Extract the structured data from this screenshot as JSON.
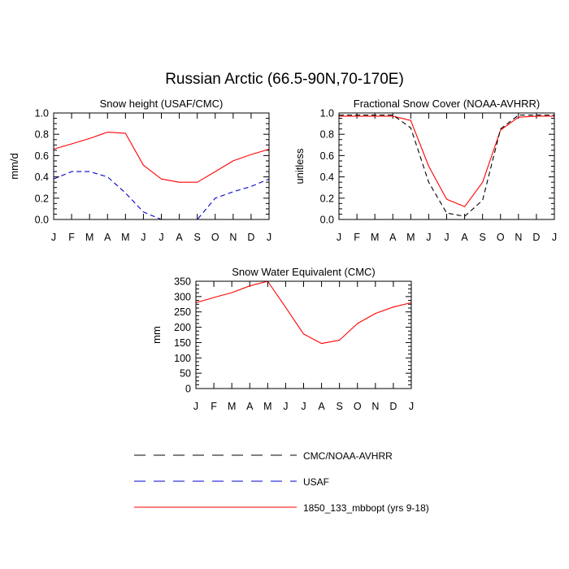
{
  "figure": {
    "title": "Russian Arctic (66.5-90N,70-170E)"
  },
  "colors": {
    "model": "#ff0000",
    "usaf": "#0000cc",
    "cmc": "#000000",
    "axis": "#000000",
    "legend_gray": "#888888"
  },
  "legend": [
    {
      "label": "CMC/NOAA-AVHRR",
      "style": "dashed",
      "color": "#000000"
    },
    {
      "label": "USAF",
      "style": "dashed",
      "color": "#0000cc"
    },
    {
      "label": "1850_133_mbbopt (yrs 9-18)",
      "style": "solid",
      "color": "#ff0000"
    }
  ],
  "chart_data": [
    {
      "type": "line",
      "title": "Snow height (USAF/CMC)",
      "ylabel": "mm/d",
      "xlabel": "",
      "categories": [
        "J",
        "F",
        "M",
        "A",
        "M",
        "J",
        "J",
        "A",
        "S",
        "O",
        "N",
        "D",
        "J"
      ],
      "ylim": [
        0,
        1.0
      ],
      "yticks": [
        "0.0",
        "0.2",
        "0.4",
        "0.6",
        "0.8",
        "1.0"
      ],
      "series": [
        {
          "values": [
            0.66,
            0.71,
            0.76,
            0.82,
            0.81,
            0.51,
            0.38,
            0.35,
            0.35,
            0.45,
            0.55,
            0.61,
            0.66
          ],
          "color": "#ff0000",
          "dash": false
        },
        {
          "values": [
            0.38,
            0.45,
            0.45,
            0.4,
            0.25,
            0.07,
            0.0,
            0.0,
            0.0,
            0.2,
            0.26,
            0.31,
            0.38
          ],
          "color": "#0000cc",
          "dash": true
        },
        {
          "values": [
            0.0,
            0.0,
            0.0,
            0.0,
            0.0,
            0.0,
            0.0,
            0.0,
            0.0,
            0.0,
            0.0,
            0.0,
            0.0
          ],
          "color": "#000000",
          "dash": true
        }
      ]
    },
    {
      "type": "line",
      "title": "Fractional Snow Cover (NOAA-AVHRR)",
      "ylabel": "unitless",
      "xlabel": "",
      "categories": [
        "J",
        "F",
        "M",
        "A",
        "M",
        "J",
        "J",
        "A",
        "S",
        "O",
        "N",
        "D",
        "J"
      ],
      "ylim": [
        0,
        1.0
      ],
      "yticks": [
        "0.0",
        "0.2",
        "0.4",
        "0.6",
        "0.8",
        "1.0"
      ],
      "series": [
        {
          "values": [
            0.97,
            0.97,
            0.97,
            0.97,
            0.93,
            0.5,
            0.19,
            0.12,
            0.35,
            0.84,
            0.96,
            0.97,
            0.97
          ],
          "color": "#ff0000",
          "dash": false
        },
        {
          "values": [
            0.98,
            0.98,
            0.98,
            0.98,
            0.86,
            0.35,
            0.06,
            0.03,
            0.18,
            0.85,
            0.98,
            0.98,
            0.98
          ],
          "color": "#000000",
          "dash": true
        }
      ]
    },
    {
      "type": "line",
      "title": "Snow Water Equivalent (CMC)",
      "ylabel": "mm",
      "xlabel": "",
      "categories": [
        "J",
        "F",
        "M",
        "A",
        "M",
        "J",
        "J",
        "A",
        "S",
        "O",
        "N",
        "D",
        "J"
      ],
      "ylim": [
        0,
        350
      ],
      "yticks": [
        "0",
        "50",
        "100",
        "150",
        "200",
        "250",
        "300",
        "350"
      ],
      "series": [
        {
          "values": [
            280,
            297,
            313,
            335,
            350,
            265,
            178,
            147,
            158,
            212,
            245,
            266,
            280
          ],
          "color": "#ff0000",
          "dash": false
        },
        {
          "values": [
            0,
            0,
            0,
            0,
            0,
            0,
            0,
            0,
            0,
            0,
            0,
            0,
            0
          ],
          "color": "#000000",
          "dash": true
        }
      ]
    }
  ]
}
